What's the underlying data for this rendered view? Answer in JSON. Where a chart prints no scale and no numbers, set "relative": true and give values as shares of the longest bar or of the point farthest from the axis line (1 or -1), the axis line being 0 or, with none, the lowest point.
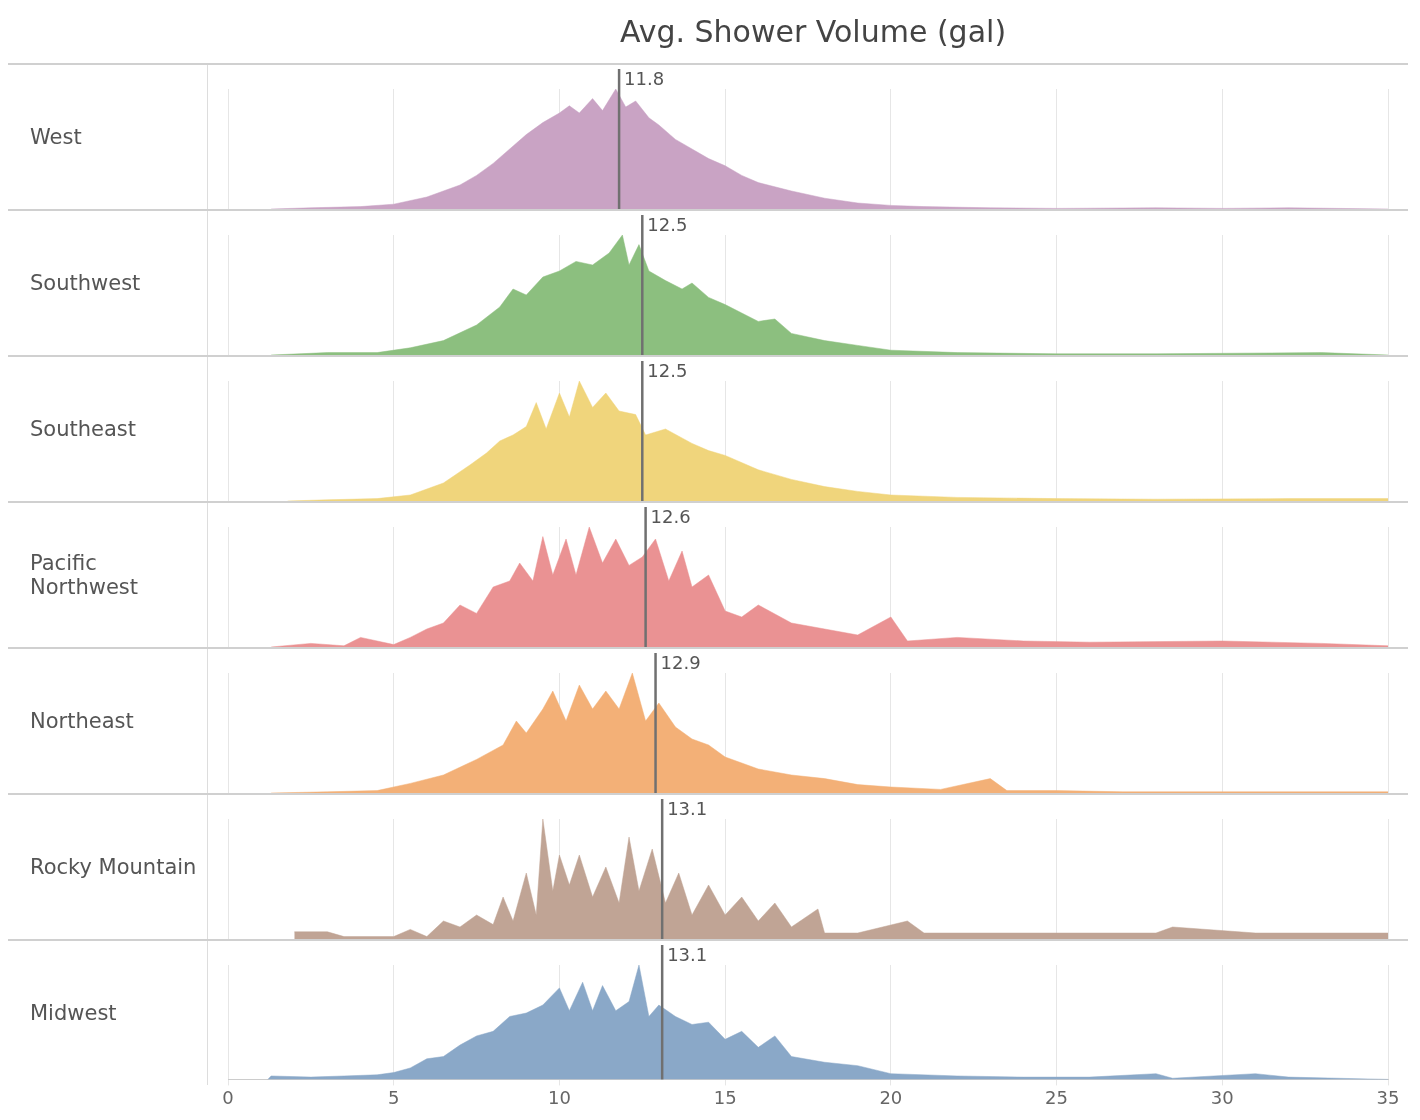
{
  "chart_data": [
    {
      "type": "area",
      "title": "Avg. Shower Volume (gal)",
      "ylabel": "West",
      "relative": true,
      "grid": "x",
      "tick_labels": false,
      "xlim": [
        0,
        35
      ],
      "xticks": [
        0,
        5,
        10,
        15,
        20,
        25,
        30,
        35
      ],
      "ref_lines": [
        {
          "axis": "x",
          "value": 11.8,
          "label": "11.8",
          "color": "#707070"
        }
      ],
      "x": [
        1.3,
        2.5,
        4,
        5,
        6,
        7,
        7.5,
        8,
        8.5,
        9,
        9.5,
        10,
        10.3,
        10.6,
        11,
        11.3,
        11.7,
        12,
        12.3,
        12.7,
        13,
        13.5,
        14,
        14.5,
        15,
        15.5,
        16,
        17,
        18,
        19,
        20,
        21,
        23,
        25,
        28,
        30,
        32,
        35
      ],
      "series": [
        {
          "color": "#c9a3c4",
          "values": [
            0,
            0.01,
            0.02,
            0.04,
            0.1,
            0.2,
            0.28,
            0.38,
            0.5,
            0.62,
            0.72,
            0.8,
            0.86,
            0.8,
            0.92,
            0.82,
            1,
            0.85,
            0.9,
            0.76,
            0.7,
            0.58,
            0.5,
            0.42,
            0.36,
            0.28,
            0.22,
            0.15,
            0.09,
            0.05,
            0.03,
            0.02,
            0.01,
            0.005,
            0.01,
            0.005,
            0.01,
            0
          ]
        }
      ]
    },
    {
      "type": "area",
      "ylabel": "Southwest",
      "relative": true,
      "grid": "x",
      "tick_labels": false,
      "xlim": [
        0,
        35
      ],
      "xticks": [
        0,
        5,
        10,
        15,
        20,
        25,
        30,
        35
      ],
      "ref_lines": [
        {
          "axis": "x",
          "value": 12.5,
          "label": "12.5",
          "color": "#707070"
        }
      ],
      "x": [
        1.3,
        3,
        4.5,
        5.5,
        6.5,
        7.5,
        8.2,
        8.6,
        9,
        9.5,
        10,
        10.5,
        11,
        11.5,
        11.9,
        12.1,
        12.4,
        12.7,
        13.2,
        13.7,
        14,
        14.5,
        15,
        15.5,
        16,
        16.5,
        17,
        18,
        19,
        20,
        22,
        25,
        28,
        33,
        35
      ],
      "series": [
        {
          "color": "#8cbf7f",
          "values": [
            0,
            0.02,
            0.02,
            0.06,
            0.12,
            0.25,
            0.4,
            0.55,
            0.5,
            0.65,
            0.7,
            0.78,
            0.75,
            0.85,
            1,
            0.75,
            0.92,
            0.7,
            0.62,
            0.55,
            0.6,
            0.48,
            0.42,
            0.35,
            0.28,
            0.3,
            0.18,
            0.12,
            0.08,
            0.04,
            0.02,
            0.01,
            0.01,
            0.02,
            0
          ]
        }
      ]
    },
    {
      "type": "area",
      "ylabel": "Southeast",
      "relative": true,
      "grid": "x",
      "tick_labels": false,
      "xlim": [
        0,
        35
      ],
      "xticks": [
        0,
        5,
        10,
        15,
        20,
        25,
        30,
        35
      ],
      "ref_lines": [
        {
          "axis": "x",
          "value": 12.5,
          "label": "12.5",
          "color": "#707070"
        }
      ],
      "x": [
        1.8,
        3,
        4.5,
        5.5,
        6.5,
        7.3,
        7.8,
        8.2,
        8.6,
        9,
        9.3,
        9.6,
        10,
        10.3,
        10.6,
        11,
        11.4,
        11.8,
        12.3,
        12.6,
        13.2,
        14,
        14.5,
        15,
        16,
        17,
        18,
        19,
        20,
        22,
        25,
        28,
        32,
        35
      ],
      "series": [
        {
          "color": "#f0d57c",
          "values": [
            0,
            0.01,
            0.02,
            0.05,
            0.15,
            0.3,
            0.4,
            0.5,
            0.55,
            0.62,
            0.82,
            0.6,
            0.9,
            0.7,
            1,
            0.78,
            0.9,
            0.75,
            0.72,
            0.55,
            0.6,
            0.48,
            0.42,
            0.38,
            0.26,
            0.18,
            0.12,
            0.08,
            0.05,
            0.03,
            0.02,
            0.015,
            0.02,
            0.02
          ]
        }
      ]
    },
    {
      "type": "area",
      "ylabel": "Pacific Northwest",
      "relative": true,
      "grid": "x",
      "tick_labels": false,
      "xlim": [
        0,
        35
      ],
      "xticks": [
        0,
        5,
        10,
        15,
        20,
        25,
        30,
        35
      ],
      "ref_lines": [
        {
          "axis": "x",
          "value": 12.6,
          "label": "12.6",
          "color": "#707070"
        }
      ],
      "x": [
        1.3,
        2.5,
        3.5,
        4,
        5,
        5.5,
        6,
        6.5,
        7,
        7.5,
        8,
        8.5,
        8.8,
        9.2,
        9.5,
        9.8,
        10.2,
        10.5,
        10.9,
        11.3,
        11.7,
        12.1,
        12.5,
        12.9,
        13.3,
        13.7,
        14,
        14.5,
        15,
        15.5,
        16,
        17,
        18,
        19,
        20,
        20.5,
        22,
        24,
        26,
        30,
        33,
        35
      ],
      "series": [
        {
          "color": "#ea9293",
          "values": [
            0,
            0.03,
            0.01,
            0.08,
            0.02,
            0.08,
            0.15,
            0.2,
            0.35,
            0.28,
            0.5,
            0.55,
            0.7,
            0.55,
            0.92,
            0.6,
            0.9,
            0.6,
            1,
            0.7,
            0.9,
            0.68,
            0.75,
            0.9,
            0.55,
            0.8,
            0.5,
            0.6,
            0.3,
            0.25,
            0.35,
            0.2,
            0.15,
            0.1,
            0.25,
            0.05,
            0.08,
            0.05,
            0.04,
            0.05,
            0.03,
            0.01
          ]
        }
      ]
    },
    {
      "type": "area",
      "ylabel": "Northeast",
      "relative": true,
      "grid": "x",
      "tick_labels": false,
      "xlim": [
        0,
        35
      ],
      "xticks": [
        0,
        5,
        10,
        15,
        20,
        25,
        30,
        35
      ],
      "ref_lines": [
        {
          "axis": "x",
          "value": 12.9,
          "label": "12.9",
          "color": "#707070"
        }
      ],
      "x": [
        1.3,
        3,
        4.5,
        5.5,
        6.5,
        7.5,
        8.3,
        8.7,
        9,
        9.5,
        9.8,
        10.2,
        10.6,
        11,
        11.4,
        11.8,
        12.2,
        12.6,
        13,
        13.5,
        14,
        14.5,
        15,
        16,
        17,
        18,
        19,
        20,
        21.5,
        23,
        23.5,
        25,
        27,
        30,
        35
      ],
      "series": [
        {
          "color": "#f3b077",
          "values": [
            0,
            0.01,
            0.02,
            0.08,
            0.15,
            0.28,
            0.4,
            0.6,
            0.5,
            0.7,
            0.85,
            0.6,
            0.9,
            0.7,
            0.85,
            0.7,
            1,
            0.6,
            0.75,
            0.55,
            0.45,
            0.4,
            0.3,
            0.2,
            0.15,
            0.12,
            0.07,
            0.05,
            0.03,
            0.12,
            0.02,
            0.02,
            0.01,
            0.01,
            0.01
          ]
        }
      ]
    },
    {
      "type": "area",
      "ylabel": "Rocky Mountain",
      "relative": true,
      "grid": "x",
      "tick_labels": false,
      "xlim": [
        0,
        35
      ],
      "xticks": [
        0,
        5,
        10,
        15,
        20,
        25,
        30,
        35
      ],
      "ref_lines": [
        {
          "axis": "x",
          "value": 13.1,
          "label": "13.1",
          "color": "#707070"
        }
      ],
      "x": [
        2,
        3,
        3.5,
        5,
        5.5,
        6,
        6.5,
        7,
        7.5,
        8,
        8.3,
        8.6,
        9,
        9.3,
        9.5,
        9.8,
        10,
        10.3,
        10.6,
        11,
        11.4,
        11.8,
        12.1,
        12.4,
        12.8,
        13.2,
        13.6,
        14,
        14.5,
        15,
        15.5,
        16,
        16.5,
        17,
        17.8,
        18,
        19,
        20.5,
        21,
        25,
        28,
        28.5,
        31,
        35
      ],
      "series": [
        {
          "color": "#c0a495",
          "values": [
            0.06,
            0.06,
            0.02,
            0.02,
            0.08,
            0.02,
            0.15,
            0.1,
            0.2,
            0.12,
            0.35,
            0.15,
            0.55,
            0.2,
            1,
            0.4,
            0.7,
            0.45,
            0.7,
            0.35,
            0.6,
            0.3,
            0.85,
            0.4,
            0.75,
            0.3,
            0.55,
            0.2,
            0.45,
            0.2,
            0.35,
            0.15,
            0.3,
            0.1,
            0.25,
            0.05,
            0.05,
            0.15,
            0.05,
            0.05,
            0.05,
            0.1,
            0.05,
            0.05
          ]
        }
      ]
    },
    {
      "type": "area",
      "ylabel": "Midwest",
      "relative": true,
      "grid": "x",
      "xlim": [
        0,
        35
      ],
      "xticks": [
        0,
        5,
        10,
        15,
        20,
        25,
        30,
        35
      ],
      "tick_labels": "x",
      "ref_lines": [
        {
          "axis": "x",
          "value": 13.1,
          "label": "13.1",
          "color": "#707070"
        }
      ],
      "x": [
        1.2,
        1.3,
        2.5,
        3.5,
        4.5,
        5,
        5.5,
        6,
        6.5,
        7,
        7.5,
        8,
        8.5,
        9,
        9.5,
        10,
        10.3,
        10.7,
        11,
        11.3,
        11.7,
        12.1,
        12.4,
        12.7,
        13,
        13.5,
        14,
        14.5,
        15,
        15.5,
        16,
        16.5,
        17,
        18,
        19,
        20,
        22,
        24,
        26,
        28,
        28.5,
        31,
        32,
        35
      ],
      "series": [
        {
          "color": "#8aa8c8",
          "values": [
            0,
            0.03,
            0.02,
            0.03,
            0.04,
            0.06,
            0.1,
            0.18,
            0.2,
            0.3,
            0.38,
            0.42,
            0.55,
            0.58,
            0.65,
            0.8,
            0.6,
            0.85,
            0.6,
            0.82,
            0.6,
            0.68,
            1,
            0.55,
            0.65,
            0.55,
            0.48,
            0.5,
            0.35,
            0.42,
            0.28,
            0.38,
            0.2,
            0.15,
            0.12,
            0.05,
            0.03,
            0.02,
            0.02,
            0.05,
            0.01,
            0.05,
            0.02,
            0
          ]
        }
      ]
    }
  ]
}
